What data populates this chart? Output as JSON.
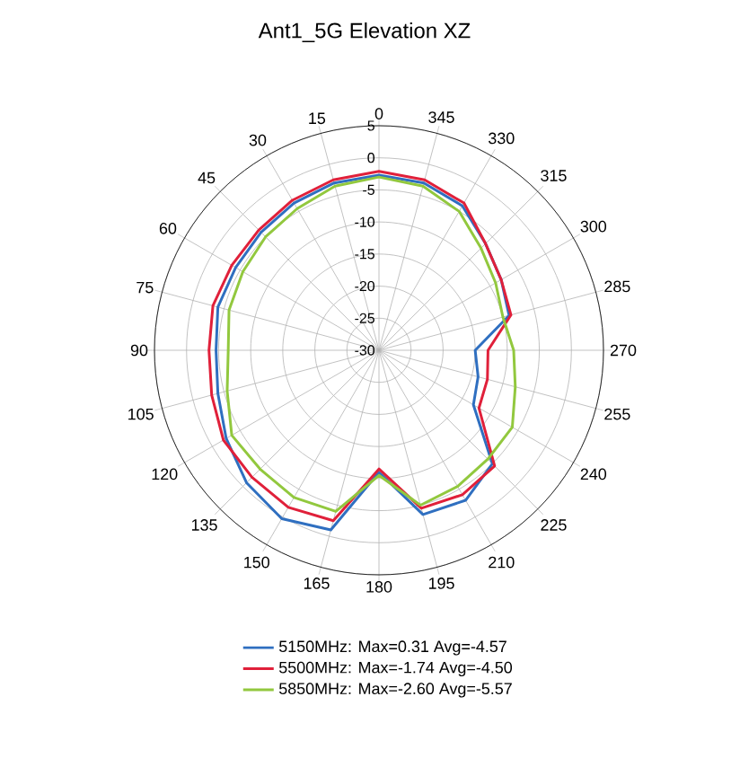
{
  "chart_data": {
    "type": "radar",
    "title": "Ant1_5G Elevation XZ",
    "categories": [
      "0",
      "345",
      "330",
      "315",
      "300",
      "285",
      "270",
      "255",
      "240",
      "225",
      "210",
      "195",
      "180",
      "165",
      "150",
      "135",
      "120",
      "105",
      "90",
      "75",
      "60",
      "45",
      "30",
      "15"
    ],
    "ylim": [
      -30,
      5
    ],
    "yticks": [
      -30,
      -25,
      -20,
      -15,
      -10,
      -5,
      0,
      5
    ],
    "grid": true,
    "legend": "bottom",
    "series": [
      {
        "name": "5150MHz: Max=0.31 Avg=-4.57",
        "color": "#2f6fc0",
        "values": [
          -2.7,
          -3,
          -4,
          -6.5,
          -8,
          -9,
          -15,
          -14,
          -13,
          -5,
          -3,
          -3.5,
          -11,
          -1,
          0.3,
          -0.8,
          -2.5,
          -4,
          -4.6,
          -4,
          -4.2,
          -4,
          -3.5,
          -3
        ]
      },
      {
        "name": "5500MHz: Max=-1.74 Avg=-4.50",
        "color": "#e0203a",
        "values": [
          -2.1,
          -2.5,
          -3.5,
          -6.5,
          -8,
          -8.7,
          -13,
          -12.5,
          -12,
          -4.5,
          -4,
          -4.5,
          -11.5,
          -2.5,
          -1.74,
          -2,
          -2,
          -3,
          -3.5,
          -3.2,
          -3.5,
          -3.5,
          -3,
          -2.5
        ]
      },
      {
        "name": "5850MHz: Max=-2.60 Avg=-5.57",
        "color": "#92c83e",
        "values": [
          -3,
          -3.5,
          -5,
          -7.5,
          -9,
          -10,
          -9,
          -8,
          -6,
          -6,
          -5.5,
          -5,
          -10.5,
          -4,
          -3.5,
          -3.8,
          -3.5,
          -5.5,
          -6.5,
          -5.8,
          -5.5,
          -5,
          -4.5,
          -3.5
        ]
      }
    ]
  }
}
